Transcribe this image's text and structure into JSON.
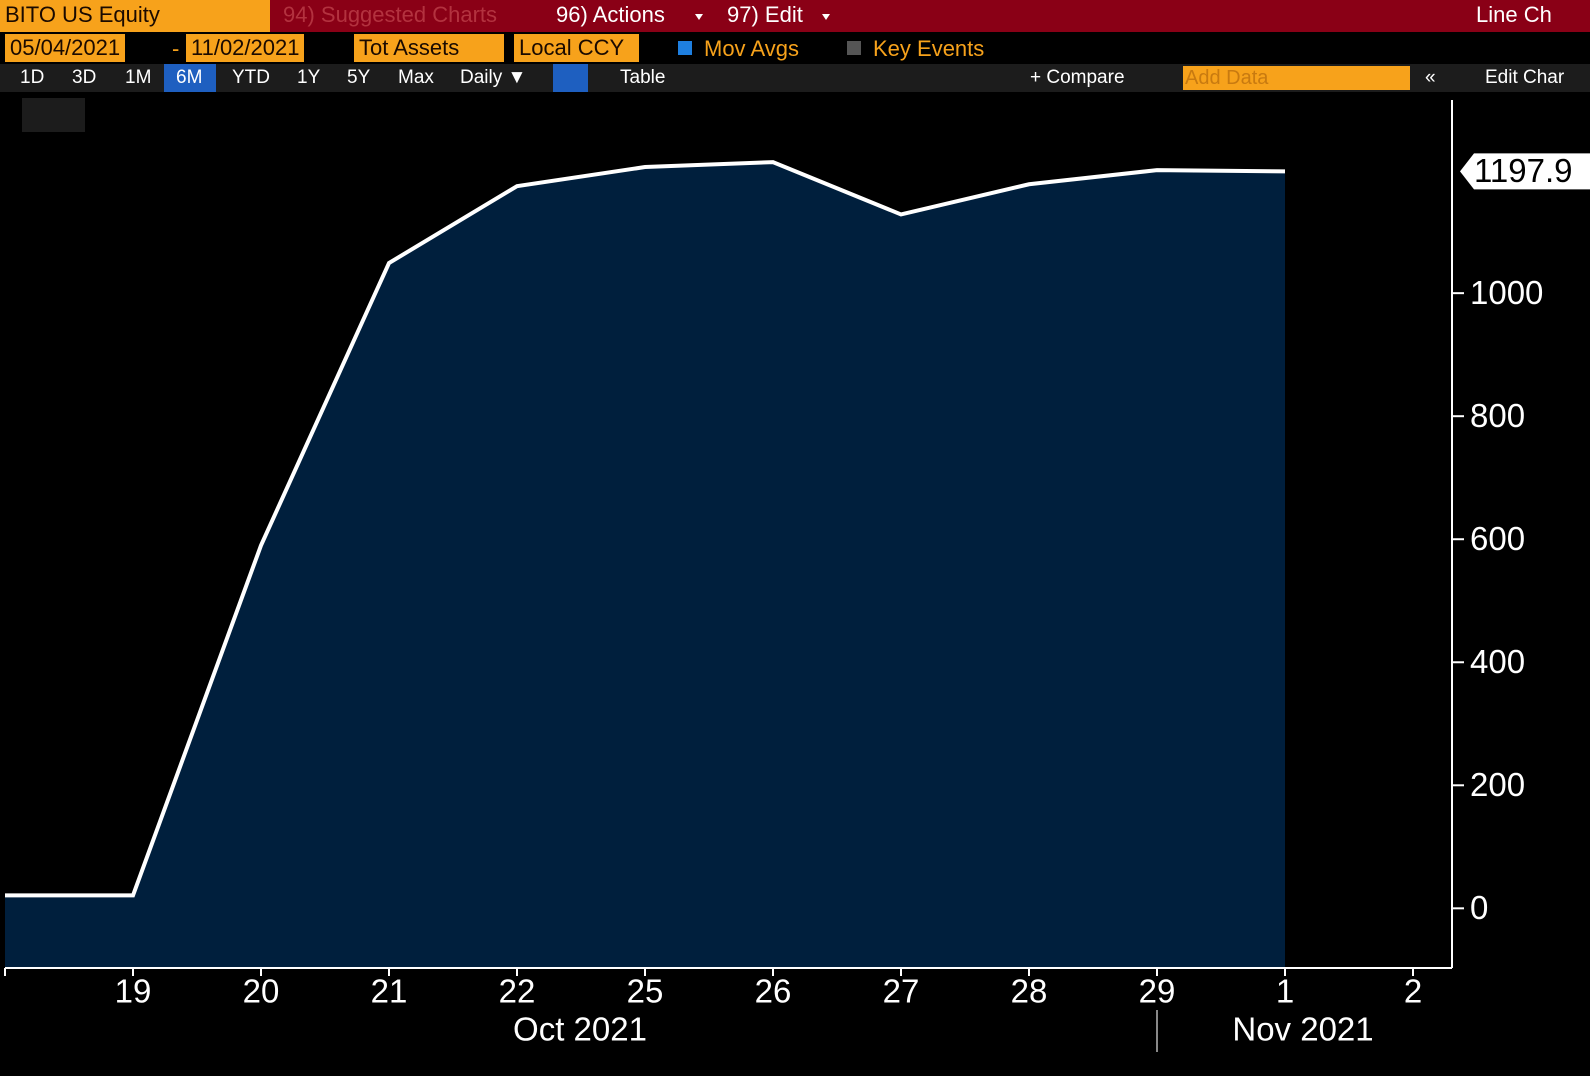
{
  "toolbar": {
    "security": "BITO US Equity",
    "menu": [
      "94) Suggested Charts",
      "96) Actions",
      "97) Edit"
    ],
    "chart_type": "Line Ch",
    "start_date": "05/04/2021",
    "date_sep": "-",
    "end_date": "11/02/2021",
    "field": "Tot Assets",
    "currency": "Local CCY",
    "mov_avgs": "Mov Avgs",
    "key_events": "Key Events",
    "periods": [
      "1D",
      "3D",
      "1M",
      "6M",
      "YTD",
      "1Y",
      "5Y",
      "Max"
    ],
    "frequency": "Daily ▼",
    "table": "Table",
    "compare": "+ Compare",
    "add_data": "Add Data",
    "collapse": "«",
    "edit_chart": "Edit Char"
  },
  "chart_data": {
    "type": "area",
    "categories": [
      null,
      "19",
      "20",
      "21",
      "22",
      "25",
      "26",
      "27",
      "28",
      "29",
      "1",
      "2"
    ],
    "months": [
      "Oct 2021",
      "Nov 2021"
    ],
    "series": [
      {
        "name": "Tot Assets",
        "color": "#ffffff",
        "fill": "#001f3d",
        "values": [
          21,
          21,
          590,
          1049,
          1174,
          1205,
          1213,
          1128,
          1177,
          1200,
          1197.9,
          null
        ],
        "value_labels": [
          null,
          null,
          null,
          null,
          null,
          null,
          null,
          null,
          null,
          null,
          "1197.9",
          null
        ]
      }
    ],
    "ylim": [
      -97,
      1314
    ],
    "yticks": [
      0,
      200,
      400,
      600,
      800,
      1000
    ]
  }
}
